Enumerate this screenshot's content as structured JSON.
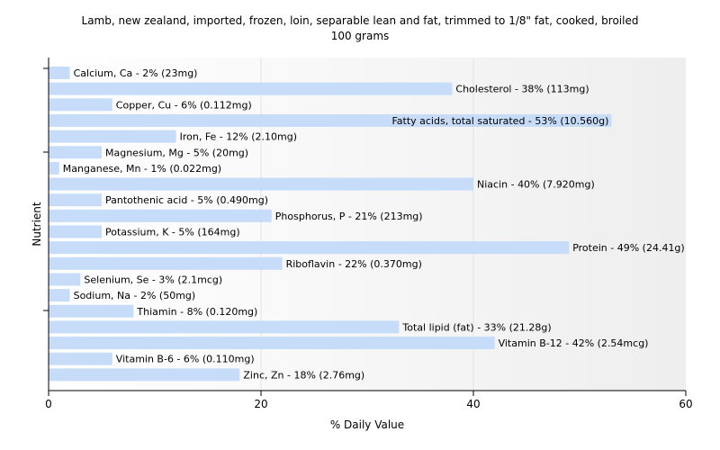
{
  "chart_data": {
    "type": "bar",
    "orientation": "horizontal",
    "title_lines": [
      "Lamb, new zealand, imported, frozen, loin, separable lean and fat, trimmed to 1/8\" fat, cooked, broiled",
      "100 grams"
    ],
    "xlabel": "% Daily Value",
    "ylabel": "Nutrient",
    "xlim": [
      0,
      60
    ],
    "xticks": [
      0,
      20,
      40,
      60
    ],
    "grid": true,
    "bar_color": "#c6dcf9",
    "categories": [
      "Calcium, Ca",
      "Cholesterol",
      "Copper, Cu",
      "Fatty acids, total saturated",
      "Iron, Fe",
      "Magnesium, Mg",
      "Manganese, Mn",
      "Niacin",
      "Pantothenic acid",
      "Phosphorus, P",
      "Potassium, K",
      "Protein",
      "Riboflavin",
      "Selenium, Se",
      "Sodium, Na",
      "Thiamin",
      "Total lipid (fat)",
      "Vitamin B-12",
      "Vitamin B-6",
      "Zinc, Zn"
    ],
    "values": [
      2,
      38,
      6,
      53,
      12,
      5,
      1,
      40,
      5,
      21,
      5,
      49,
      22,
      3,
      2,
      8,
      33,
      42,
      6,
      18
    ],
    "labels": [
      "Calcium, Ca - 2% (23mg)",
      "Cholesterol - 38% (113mg)",
      "Copper, Cu - 6% (0.112mg)",
      "Fatty acids, total saturated - 53% (10.560g)",
      "Iron, Fe - 12% (2.10mg)",
      "Magnesium, Mg - 5% (20mg)",
      "Manganese, Mn - 1% (0.022mg)",
      "Niacin - 40% (7.920mg)",
      "Pantothenic acid - 5% (0.490mg)",
      "Phosphorus, P - 21% (213mg)",
      "Potassium, K - 5% (164mg)",
      "Protein - 49% (24.41g)",
      "Riboflavin - 22% (0.370mg)",
      "Selenium, Se - 3% (2.1mcg)",
      "Sodium, Na - 2% (50mg)",
      "Thiamin - 8% (0.120mg)",
      "Total lipid (fat) - 33% (21.28g)",
      "Vitamin B-12 - 42% (2.54mcg)",
      "Vitamin B-6 - 6% (0.110mg)",
      "Zinc, Zn - 18% (2.76mg)"
    ]
  }
}
